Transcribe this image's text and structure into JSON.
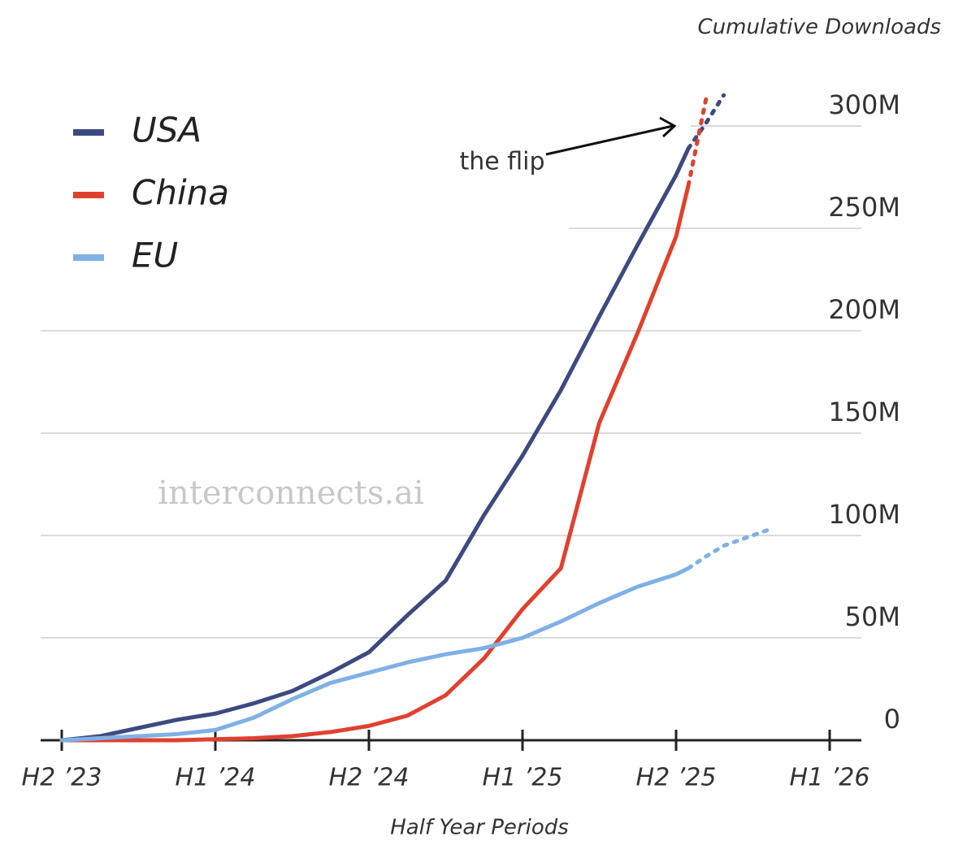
{
  "chart_data": {
    "type": "line",
    "y_axis_title": "Cumulative Downloads",
    "x_axis_title": "Half Year Periods",
    "annotation": "the flip",
    "watermark": "interconnects.ai",
    "x": [
      0,
      0.25,
      0.5,
      0.75,
      1,
      1.25,
      1.5,
      1.75,
      2,
      2.25,
      2.5,
      2.75,
      3,
      3.25,
      3.5,
      3.75,
      4,
      4.08,
      4.2,
      4.31,
      4.61
    ],
    "xlim": [
      -0.14,
      5.2
    ],
    "xticks": [
      {
        "value": 0,
        "label": "H2 ’23"
      },
      {
        "value": 1,
        "label": "H1 ’24"
      },
      {
        "value": 2,
        "label": "H2 ’24"
      },
      {
        "value": 3,
        "label": "H1 ’25"
      },
      {
        "value": 4,
        "label": "H2 ’25"
      },
      {
        "value": 5,
        "label": "H1 ’26"
      }
    ],
    "ylim": [
      0,
      300
    ],
    "yticks": [
      0,
      {
        "value": 50,
        "label": "50M"
      },
      {
        "value": 100,
        "label": "100M"
      },
      {
        "value": 150,
        "label": "150M"
      },
      {
        "value": 200,
        "label": "200M"
      },
      {
        "value": 250,
        "label": "250M"
      },
      {
        "value": 300,
        "label": "300M"
      }
    ],
    "grid": true,
    "legend": "top-left",
    "series": [
      {
        "name": "USA",
        "color": "#3d4a80",
        "values": [
          0,
          2,
          6,
          10,
          13,
          18,
          24,
          33,
          43,
          61,
          78,
          110,
          139,
          171,
          207,
          242,
          276,
          289,
          null,
          null,
          null
        ],
        "projected_values": [
          null,
          null,
          null,
          null,
          null,
          null,
          null,
          null,
          null,
          null,
          null,
          null,
          null,
          null,
          null,
          null,
          null,
          289,
          302,
          315,
          null
        ]
      },
      {
        "name": "China",
        "color": "#e0412f",
        "values": [
          0,
          0,
          0,
          0,
          0.5,
          1,
          2,
          4,
          7,
          12,
          22,
          40,
          64,
          84,
          155,
          199,
          246,
          271,
          null,
          null,
          null
        ],
        "projected_values": [
          null,
          null,
          null,
          null,
          null,
          null,
          null,
          null,
          null,
          null,
          null,
          null,
          null,
          null,
          null,
          null,
          null,
          271,
          315,
          null,
          null
        ]
      },
      {
        "name": "EU",
        "color": "#7fb0e6",
        "values": [
          0,
          1,
          2,
          3,
          5,
          11,
          20,
          28,
          33,
          38,
          42,
          45,
          50,
          58,
          67,
          75,
          81,
          84,
          null,
          null,
          null
        ],
        "projected_values": [
          null,
          null,
          null,
          null,
          null,
          null,
          null,
          null,
          null,
          null,
          null,
          null,
          null,
          null,
          null,
          null,
          null,
          84,
          90,
          95,
          103
        ]
      }
    ]
  }
}
